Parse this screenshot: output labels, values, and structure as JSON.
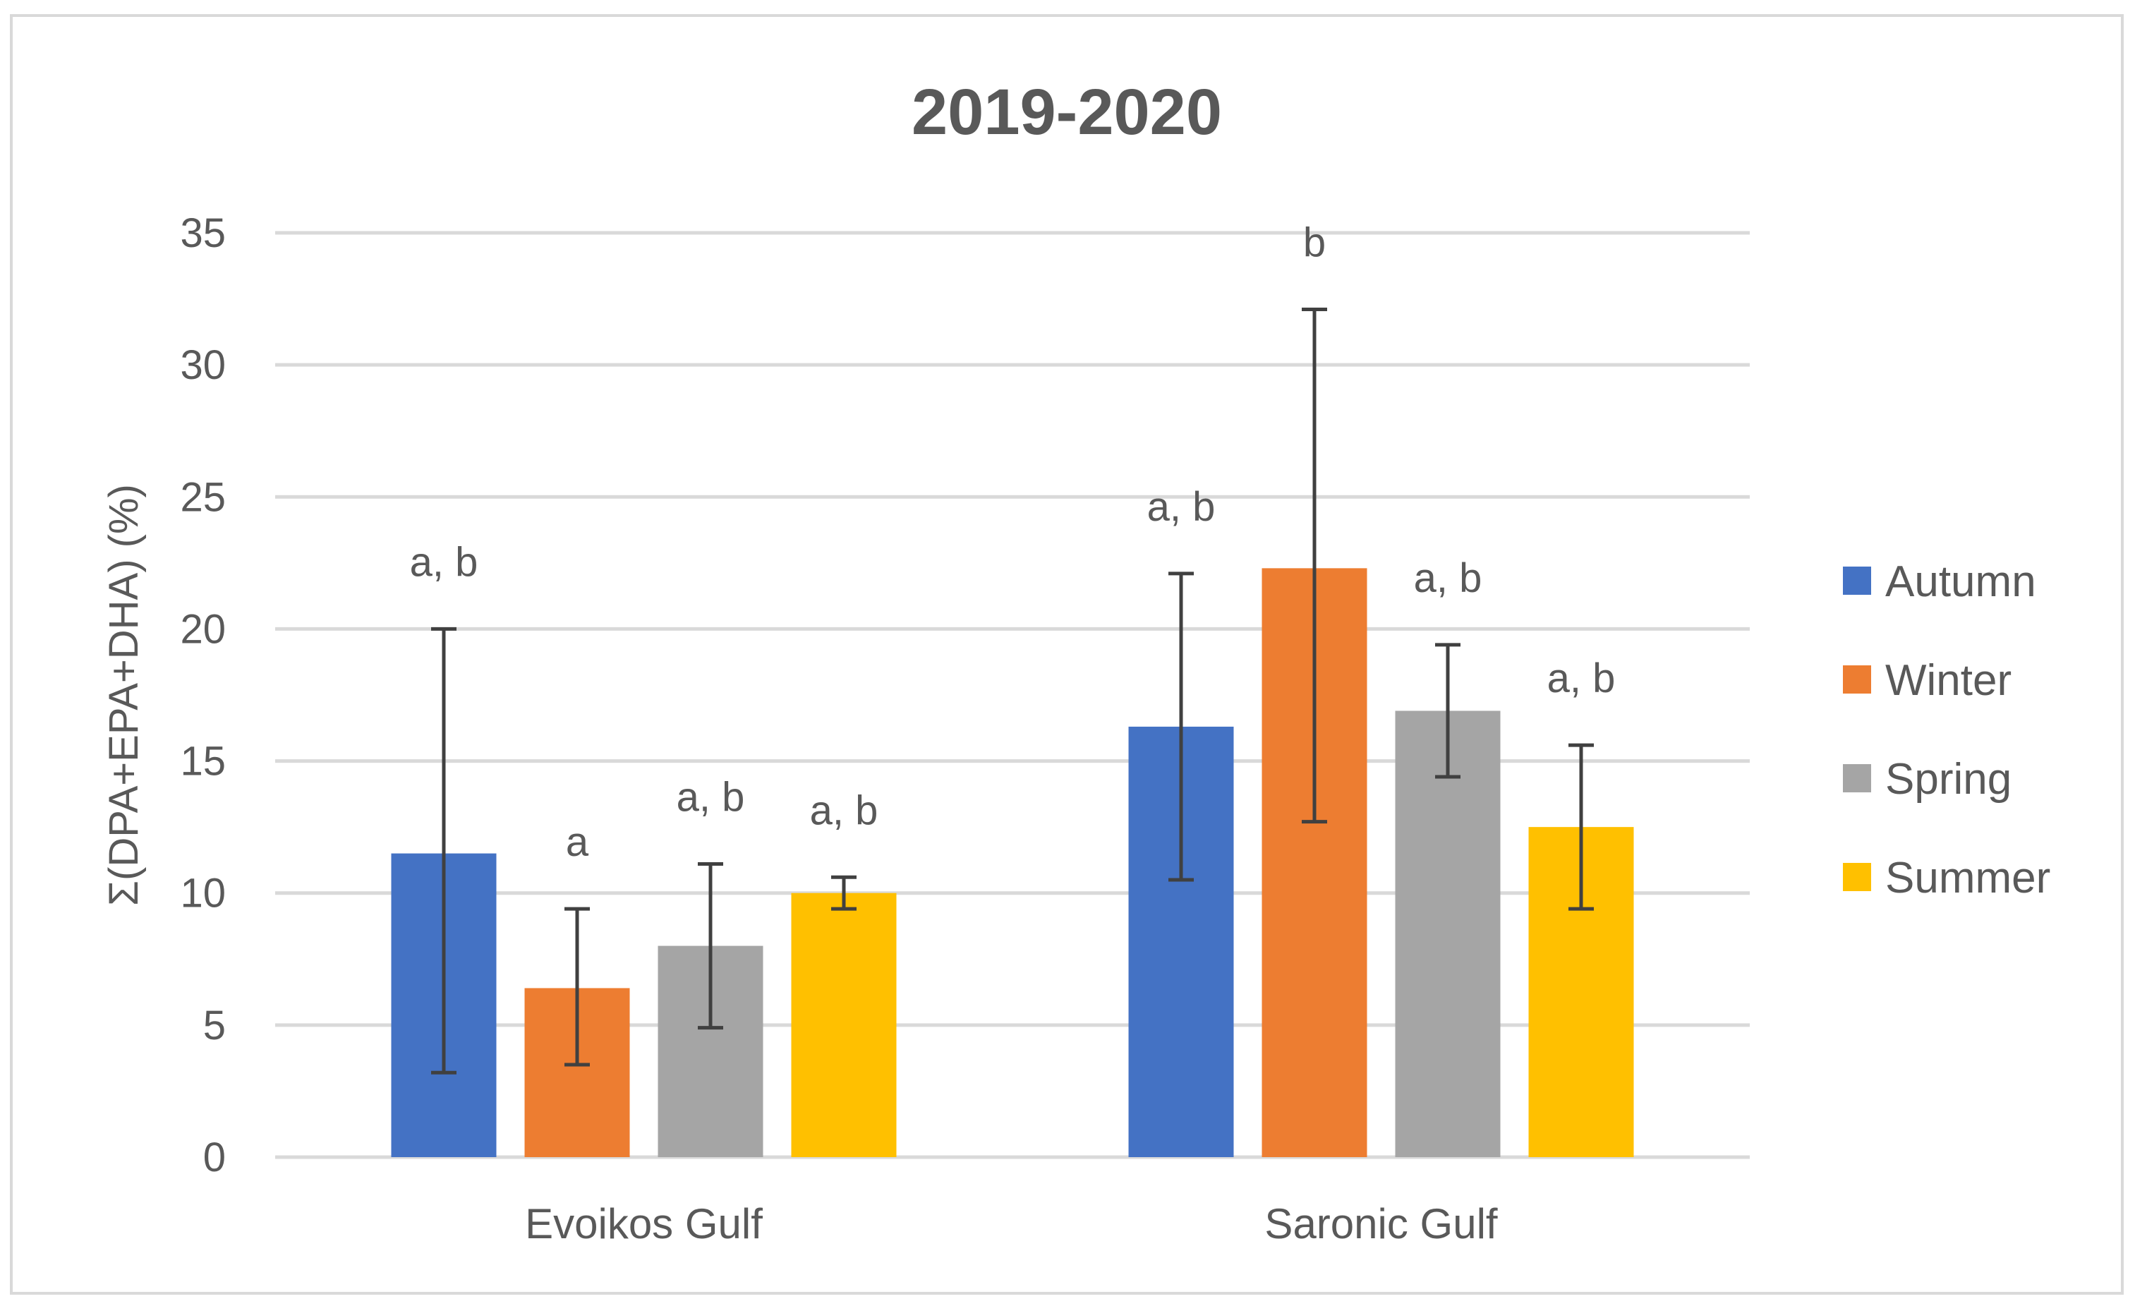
{
  "chart_data": {
    "type": "bar",
    "title": "2019-2020",
    "xlabel": "",
    "ylabel": "Σ(DPA+EPA+DHA) (%)",
    "ylim": [
      0,
      35
    ],
    "yticks": [
      0,
      5,
      10,
      15,
      20,
      25,
      30,
      35
    ],
    "grid": true,
    "legend_position": "right",
    "categories": [
      "Evoikos Gulf",
      "Saronic Gulf"
    ],
    "series": [
      {
        "name": "Autumn",
        "color": "#4472C4",
        "values": [
          11.5,
          16.3
        ],
        "error_low": [
          3.2,
          10.5
        ],
        "error_high": [
          20.0,
          22.1
        ],
        "labels": [
          "a, b",
          "a, b"
        ]
      },
      {
        "name": "Winter",
        "color": "#ED7D31",
        "values": [
          6.4,
          22.3
        ],
        "error_low": [
          3.5,
          12.7
        ],
        "error_high": [
          9.4,
          32.1
        ],
        "labels": [
          "a",
          "b"
        ]
      },
      {
        "name": "Spring",
        "color": "#A5A5A5",
        "values": [
          8.0,
          16.9
        ],
        "error_low": [
          4.9,
          14.4
        ],
        "error_high": [
          11.1,
          19.4
        ],
        "labels": [
          "a, b",
          "a, b"
        ]
      },
      {
        "name": "Summer",
        "color": "#FFC000",
        "values": [
          10.0,
          12.5
        ],
        "error_low": [
          9.4,
          9.4
        ],
        "error_high": [
          10.6,
          15.6
        ],
        "labels": [
          "a, b",
          "a, b"
        ]
      }
    ]
  }
}
